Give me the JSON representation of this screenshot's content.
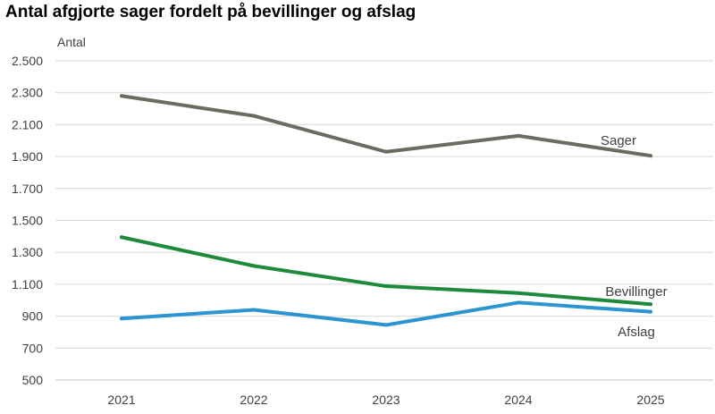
{
  "chart_data": {
    "type": "line",
    "title": "Antal afgjorte sager fordelt på bevillinger og afslag",
    "xlabel": "",
    "ylabel": "Antal",
    "categories": [
      "2021",
      "2022",
      "2023",
      "2024",
      "2025"
    ],
    "ylim": [
      500,
      2500
    ],
    "yticks": [
      500,
      700,
      900,
      1100,
      1300,
      1500,
      1700,
      1900,
      2100,
      2300,
      2500
    ],
    "ytick_labels": [
      "500",
      "700",
      "900",
      "1.100",
      "1.300",
      "1.500",
      "1.700",
      "1.900",
      "2.100",
      "2.300",
      "2.500"
    ],
    "grid": "horizontal",
    "legend": "inline labels at line ends",
    "series": [
      {
        "name": "Sager",
        "values": [
          2280,
          2155,
          1930,
          2030,
          1905
        ],
        "color": "#6b6b62"
      },
      {
        "name": "Bevillinger",
        "values": [
          1395,
          1215,
          1088,
          1045,
          975
        ],
        "color": "#1e8a3c"
      },
      {
        "name": "Afslag",
        "values": [
          885,
          940,
          845,
          985,
          928
        ],
        "color": "#2a95d1"
      }
    ]
  }
}
